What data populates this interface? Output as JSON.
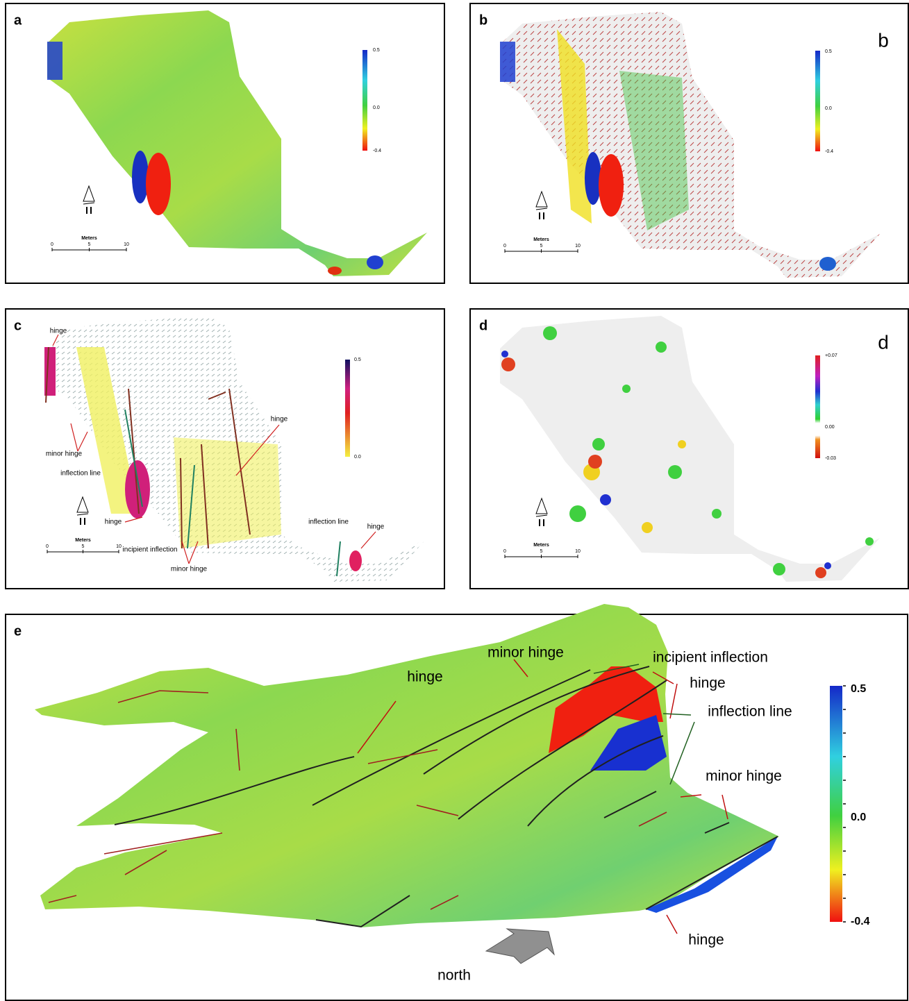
{
  "panels": [
    {
      "label": "a",
      "colorbar": [
        "0.5",
        "0.0",
        "-0.4"
      ],
      "scale": {
        "title": "Meters",
        "ticks": [
          "0",
          "5",
          "10"
        ]
      }
    },
    {
      "label": "b",
      "corner_label": "b",
      "colorbar": [
        "0.5",
        "0.0",
        "-0.4"
      ],
      "scale": {
        "title": "Meters",
        "ticks": [
          "0",
          "5",
          "10"
        ]
      }
    },
    {
      "label": "c",
      "colorbar": [
        "0.5",
        "0.0"
      ],
      "scale": {
        "title": "Meters",
        "ticks": [
          "0",
          "5",
          "10"
        ]
      },
      "annotations": [
        "hinge",
        "minor hinge",
        "inflection line",
        "hinge",
        "incipient inflection",
        "minor hinge",
        "hinge",
        "inflection line",
        "hinge"
      ]
    },
    {
      "label": "d",
      "corner_label": "d",
      "colorbar": [
        "+0.07",
        "0.00",
        "-0.03"
      ],
      "scale": {
        "title": "Meters",
        "ticks": [
          "0",
          "5",
          "10"
        ]
      }
    },
    {
      "label": "e",
      "colorbar": [
        "0.5",
        "0.0",
        "-0.4"
      ],
      "annotations": [
        "minor hinge",
        "incipient inflection",
        "hinge",
        "hinge",
        "inflection line",
        "minor hinge",
        "hinge"
      ],
      "arrow_label": "north"
    }
  ]
}
